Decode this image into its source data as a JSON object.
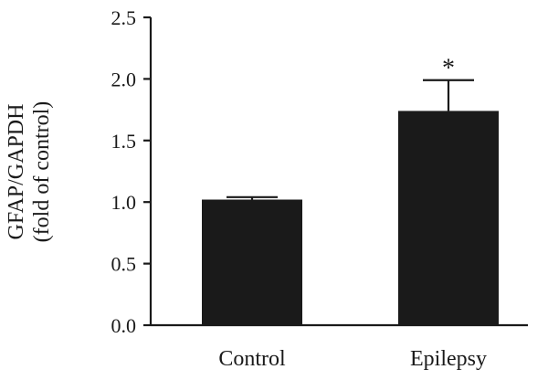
{
  "chart_data": {
    "type": "bar",
    "categories": [
      "Control",
      "Epilepsy"
    ],
    "values": [
      1.02,
      1.74
    ],
    "error": [
      0.02,
      0.25
    ],
    "annotations": [
      "",
      "*"
    ],
    "ylabel_line1": "GFAP/GAPDH",
    "ylabel_line2": "(fold of control)",
    "ylim": [
      0,
      2.5
    ],
    "yticks": [
      "0.0",
      "0.5",
      "1.0",
      "1.5",
      "2.0",
      "2.5"
    ],
    "bar_color": "#1a1a1a",
    "grid": false
  }
}
